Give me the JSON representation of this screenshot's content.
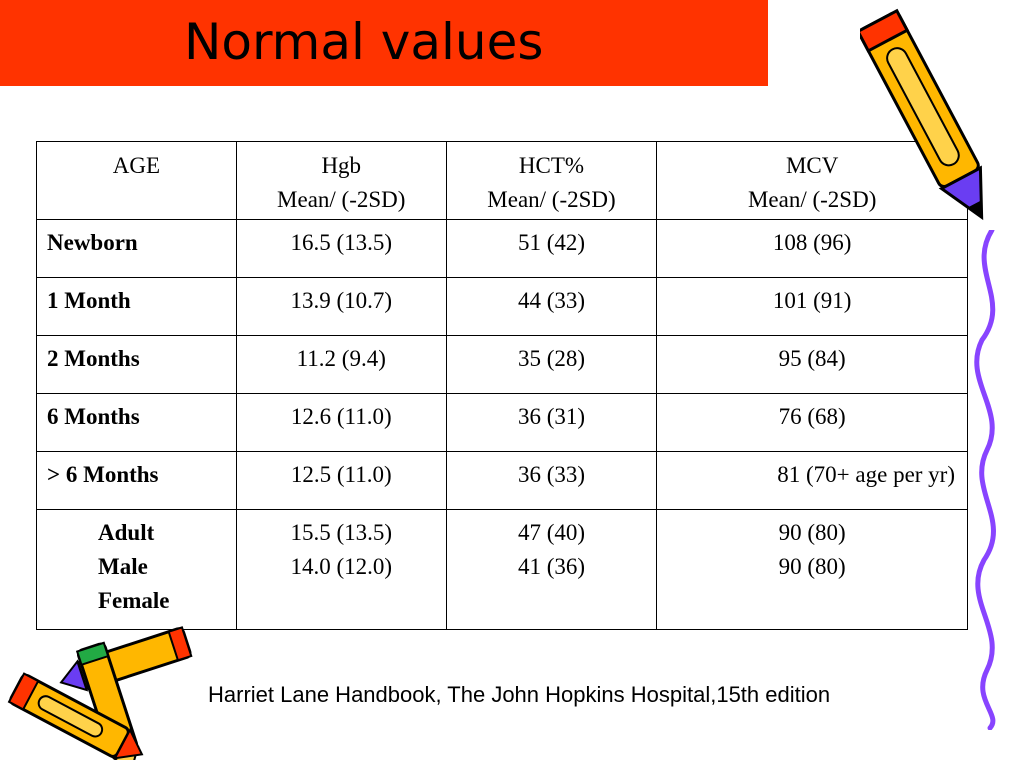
{
  "title": "Normal values",
  "table": {
    "headers": [
      {
        "line1": "AGE",
        "line2": ""
      },
      {
        "line1": "Hgb",
        "line2": "Mean/ (-2SD)"
      },
      {
        "line1": "HCT%",
        "line2": "Mean/ (-2SD)"
      },
      {
        "line1": "MCV",
        "line2": "Mean/ (-2SD)"
      }
    ],
    "rows": [
      {
        "age": "Newborn",
        "hgb": "16.5 (13.5)",
        "hct": "51 (42)",
        "mcv": "108 (96)"
      },
      {
        "age": "1 Month",
        "hgb": "13.9 (10.7)",
        "hct": "44 (33)",
        "mcv": "101 (91)"
      },
      {
        "age": "2 Months",
        "hgb": "11.2 (9.4)",
        "hct": "35 (28)",
        "mcv": "95 (84)"
      },
      {
        "age": "6 Months",
        "hgb": "12.6 (11.0)",
        "hct": "36 (31)",
        "mcv": "76 (68)"
      },
      {
        "age": "> 6 Months",
        "hgb": "12.5 (11.0)",
        "hct": "36 (33)",
        "mcv": "81 (70+ age per yr)"
      }
    ],
    "adult": {
      "age_lines": [
        "Adult",
        "Male",
        "Female"
      ],
      "hgb_lines": [
        "15.5 (13.5)",
        "14.0 (12.0)"
      ],
      "hct_lines": [
        "47 (40)",
        "41 (36)"
      ],
      "mcv_lines": [
        "90 (80)",
        "90 (80)"
      ]
    }
  },
  "source": "Harriet Lane Handbook, The John Hopkins Hospital,15th edition",
  "icons": [
    "pencil-top-right-icon",
    "squiggle-line-icon",
    "pencil-cluster-bottom-left-icon"
  ],
  "colors": {
    "title_bar": "#ff3300",
    "pencil_body": "#ffb700",
    "pencil_accent": "#6a3df2",
    "squiggle": "#8844ff"
  }
}
